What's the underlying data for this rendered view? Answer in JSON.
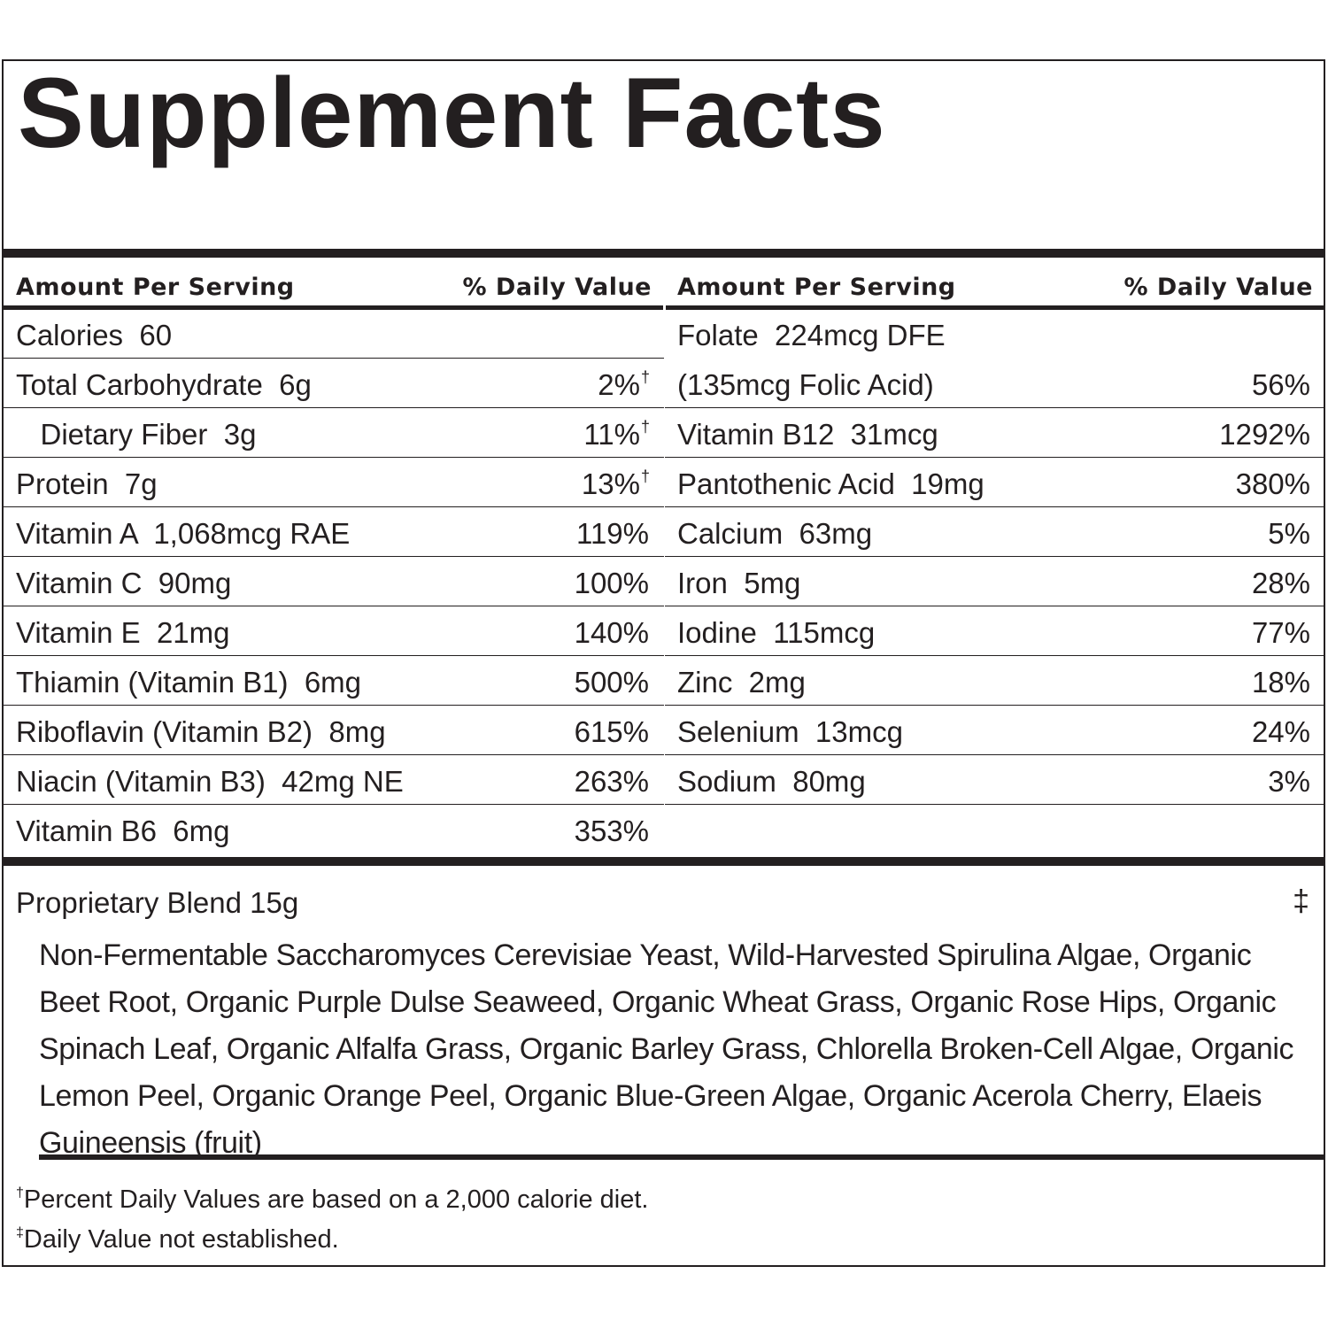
{
  "title": "Supplement Facts",
  "header": {
    "amount": "Amount Per Serving",
    "daily_value": "% Daily Value"
  },
  "left_rows": [
    {
      "name": "Calories  60",
      "dv": "",
      "mark": ""
    },
    {
      "name": "Total Carbohydrate  6g",
      "dv": "2%",
      "mark": "†"
    },
    {
      "name": "   Dietary Fiber  3g",
      "dv": "11%",
      "mark": "†"
    },
    {
      "name": "Protein  7g",
      "dv": "13%",
      "mark": "†"
    },
    {
      "name": "Vitamin A  1,068mcg RAE",
      "dv": "119%",
      "mark": ""
    },
    {
      "name": "Vitamin C  90mg",
      "dv": "100%",
      "mark": ""
    },
    {
      "name": "Vitamin E  21mg",
      "dv": "140%",
      "mark": ""
    },
    {
      "name": "Thiamin (Vitamin B1)  6mg",
      "dv": "500%",
      "mark": ""
    },
    {
      "name": "Riboflavin (Vitamin B2)  8mg",
      "dv": "615%",
      "mark": ""
    },
    {
      "name": "Niacin (Vitamin B3)  42mg NE",
      "dv": "263%",
      "mark": ""
    },
    {
      "name": "Vitamin B6  6mg",
      "dv": "353%",
      "mark": ""
    }
  ],
  "right_rows": [
    {
      "name": "Folate  224mcg DFE",
      "dv": "",
      "mark": ""
    },
    {
      "name": "(135mcg Folic Acid)",
      "dv": "56%",
      "mark": ""
    },
    {
      "name": "Vitamin B12  31mcg",
      "dv": "1292%",
      "mark": ""
    },
    {
      "name": "Pantothenic Acid  19mg",
      "dv": "380%",
      "mark": ""
    },
    {
      "name": "Calcium  63mg",
      "dv": "5%",
      "mark": ""
    },
    {
      "name": "Iron  5mg",
      "dv": "28%",
      "mark": ""
    },
    {
      "name": "Iodine  115mcg",
      "dv": "77%",
      "mark": ""
    },
    {
      "name": "Zinc  2mg",
      "dv": "18%",
      "mark": ""
    },
    {
      "name": "Selenium  13mcg",
      "dv": "24%",
      "mark": ""
    },
    {
      "name": "Sodium  80mg",
      "dv": "3%",
      "mark": ""
    }
  ],
  "blend": {
    "name": "Proprietary Blend  15g",
    "mark": "‡",
    "ingredients": "Non-Fermentable Saccharomyces Cerevisiae Yeast, Wild-Harvested Spirulina Algae, Organic Beet Root, Organic Purple Dulse Seaweed, Organic Wheat Grass, Organic Rose Hips, Organic Spinach Leaf, Organic Alfalfa Grass, Organic Barley Grass, Chlorella Broken-Cell Algae, Organic Lemon Peel, Organic Orange Peel, Organic Blue-Green Algae, Organic Acerola Cherry, Elaeis Guineensis (fruit)"
  },
  "footnotes": [
    {
      "mark": "†",
      "text": "Percent Daily Values are based on a 2,000 calorie diet."
    },
    {
      "mark": "‡",
      "text": "Daily Value not established."
    }
  ]
}
